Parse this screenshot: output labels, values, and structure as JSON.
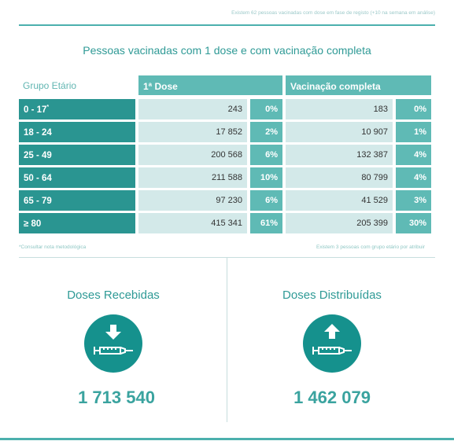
{
  "top_note": "Existem 62 pessoas vacinadas com dose em fase de registo (+10 na semana em análise)",
  "title": "Pessoas vacinadas com 1 dose e com vacinação completa",
  "table": {
    "group_header": "Grupo Etário",
    "first_dose_header": "1ª Dose",
    "complete_header": "Vacinação completa",
    "rows": [
      {
        "age": "0 - 17",
        "age_mark": "*",
        "first_n": "243",
        "first_pct": "0%",
        "comp_n": "183",
        "comp_pct": "0%"
      },
      {
        "age": "18 - 24",
        "age_mark": "",
        "first_n": "17 852",
        "first_pct": "2%",
        "comp_n": "10 907",
        "comp_pct": "1%"
      },
      {
        "age": "25 - 49",
        "age_mark": "",
        "first_n": "200 568",
        "first_pct": "6%",
        "comp_n": "132 387",
        "comp_pct": "4%"
      },
      {
        "age": "50 - 64",
        "age_mark": "",
        "first_n": "211 588",
        "first_pct": "10%",
        "comp_n": "80 799",
        "comp_pct": "4%"
      },
      {
        "age": "65 - 79",
        "age_mark": "",
        "first_n": "97 230",
        "first_pct": "6%",
        "comp_n": "41 529",
        "comp_pct": "3%"
      },
      {
        "age": "≥ 80",
        "age_mark": "",
        "first_n": "415 341",
        "first_pct": "61%",
        "comp_n": "205 399",
        "comp_pct": "30%"
      }
    ]
  },
  "footnote_left": "*Consultar nota metodológica",
  "footnote_right": "Existem 3 pessoas com grupo etário por atribuir",
  "received": {
    "label": "Doses Recebidas",
    "value": "1 713 540",
    "icon": "syringe-arrow-down-icon"
  },
  "distributed": {
    "label": "Doses Distribuídas",
    "value": "1 462 079",
    "icon": "syringe-arrow-up-icon"
  },
  "colors": {
    "accent": "#2a9591",
    "light": "#d3e9e9",
    "mid": "#5fbab5"
  }
}
